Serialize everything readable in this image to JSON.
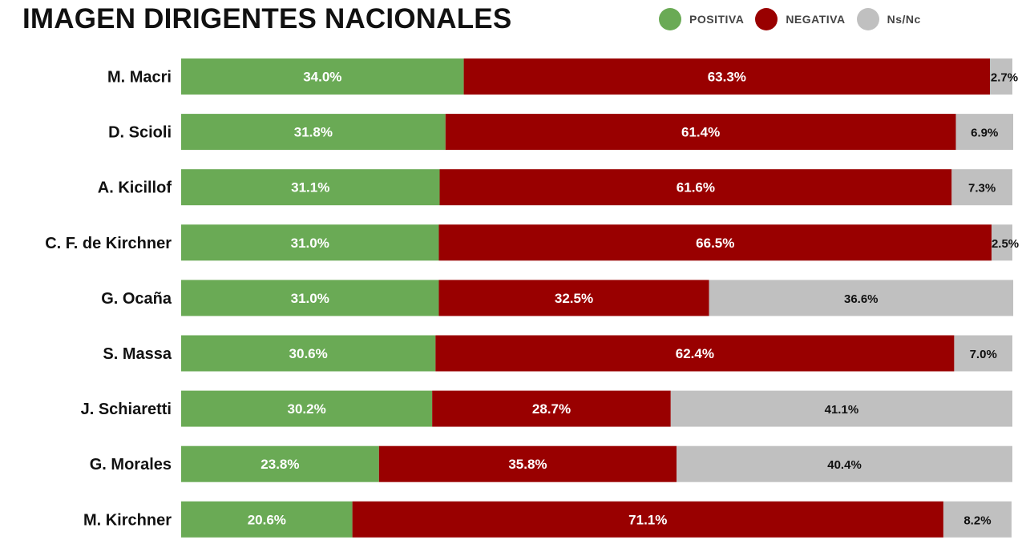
{
  "title": "IMAGEN DIRIGENTES NACIONALES",
  "legend": [
    {
      "label": "POSITIVA",
      "color": "#6aaa55"
    },
    {
      "label": "NEGATIVA",
      "color": "#990000"
    },
    {
      "label": "Ns/Nc",
      "color": "#c0c0c0"
    }
  ],
  "chart_data": {
    "type": "bar",
    "orientation": "horizontal",
    "stacked": true,
    "percent_stacked": true,
    "title": "IMAGEN DIRIGENTES NACIONALES",
    "legend_position": "top-right",
    "grid": false,
    "xlim": [
      0,
      100
    ],
    "categories": [
      "M. Macri",
      "D. Scioli",
      "A. Kicillof",
      "C. F. de Kirchner",
      "G. Ocaña",
      "S. Massa",
      "J. Schiaretti",
      "G. Morales",
      "M. Kirchner"
    ],
    "series": [
      {
        "name": "POSITIVA",
        "color": "#6aaa55",
        "values": [
          34.0,
          31.8,
          31.1,
          31.0,
          31.0,
          30.6,
          30.2,
          23.8,
          20.6
        ]
      },
      {
        "name": "NEGATIVA",
        "color": "#990000",
        "values": [
          63.3,
          61.4,
          61.6,
          66.5,
          32.5,
          62.4,
          28.7,
          35.8,
          71.1
        ]
      },
      {
        "name": "Ns/Nc",
        "color": "#c0c0c0",
        "values": [
          2.7,
          6.9,
          7.3,
          2.5,
          36.6,
          7.0,
          41.1,
          40.4,
          8.2
        ]
      }
    ]
  }
}
